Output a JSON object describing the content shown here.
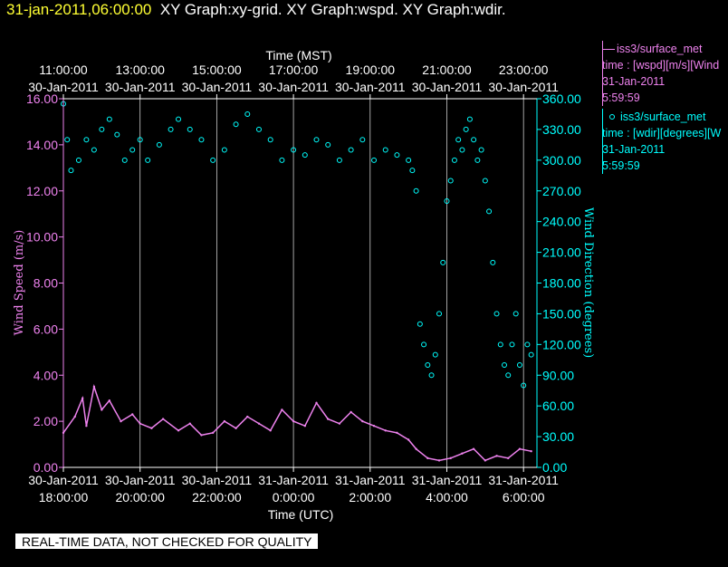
{
  "header": {
    "timestamp": "31-jan-2011,06:00:00",
    "titles": "XY Graph:xy-grid.  XY Graph:wspd.  XY Graph:wdir."
  },
  "legend": {
    "wspd": {
      "name": "iss3/surface_met",
      "line2": "time : [wspd][m/s][Wind",
      "line3": "31-Jan-2011",
      "line4": "5:59:59"
    },
    "wdir": {
      "name": "iss3/surface_met",
      "line2": "time : [wdir][degrees][W",
      "line3": "31-Jan-2011",
      "line4": "5:59:59"
    }
  },
  "disclaimer": "REAL-TIME DATA, NOT CHECKED FOR QUALITY",
  "colors": {
    "wspd": "#ee82ee",
    "wdir": "#00ffff",
    "grid": "#ffffff",
    "axis_left": "#ee82ee",
    "axis_right": "#00ffff",
    "header_timestamp": "#ffff33"
  },
  "chart_data": {
    "type": "scatter",
    "xlabel_top": "Time (MST)",
    "xlabel_bottom": "Time (UTC)",
    "ylabel_left": "Wind Speed (m/s)",
    "ylabel_right": "Wind Direction (degrees)",
    "xlim_utc_hours": [
      18.0,
      30.35
    ],
    "ylim_left": [
      0,
      16
    ],
    "ylim_right": [
      0,
      360
    ],
    "grid": true,
    "top_ticks": [
      {
        "x": 18,
        "time": "11:00:00",
        "date": "30-Jan-2011"
      },
      {
        "x": 20,
        "time": "13:00:00",
        "date": "30-Jan-2011"
      },
      {
        "x": 22,
        "time": "15:00:00",
        "date": "30-Jan-2011"
      },
      {
        "x": 24,
        "time": "17:00:00",
        "date": "30-Jan-2011"
      },
      {
        "x": 26,
        "time": "19:00:00",
        "date": "30-Jan-2011"
      },
      {
        "x": 28,
        "time": "21:00:00",
        "date": "30-Jan-2011"
      },
      {
        "x": 30,
        "time": "23:00:00",
        "date": "30-Jan-2011"
      }
    ],
    "bottom_ticks": [
      {
        "x": 18,
        "date": "30-Jan-2011",
        "time": "18:00:00"
      },
      {
        "x": 20,
        "date": "30-Jan-2011",
        "time": "20:00:00"
      },
      {
        "x": 22,
        "date": "30-Jan-2011",
        "time": "22:00:00"
      },
      {
        "x": 24,
        "date": "31-Jan-2011",
        "time": "0:00:00"
      },
      {
        "x": 26,
        "date": "31-Jan-2011",
        "time": "2:00:00"
      },
      {
        "x": 28,
        "date": "31-Jan-2011",
        "time": "4:00:00"
      },
      {
        "x": 30,
        "date": "31-Jan-2011",
        "time": "6:00:00"
      }
    ],
    "left_ticks": [
      "0.00",
      "2.00",
      "4.00",
      "6.00",
      "8.00",
      "10.00",
      "12.00",
      "14.00",
      "16.00"
    ],
    "right_ticks": [
      "0.00",
      "30.00",
      "60.00",
      "90.00",
      "120.00",
      "150.00",
      "180.00",
      "210.00",
      "240.00",
      "270.00",
      "300.00",
      "330.00",
      "360.00"
    ],
    "series": [
      {
        "name": "wspd",
        "style": "line",
        "x": [
          18.0,
          18.3,
          18.5,
          18.6,
          18.8,
          19.0,
          19.2,
          19.5,
          19.8,
          20.0,
          20.3,
          20.6,
          21.0,
          21.3,
          21.6,
          21.9,
          22.2,
          22.5,
          22.8,
          23.1,
          23.4,
          23.7,
          24.0,
          24.3,
          24.6,
          24.9,
          25.2,
          25.5,
          25.8,
          26.1,
          26.4,
          26.7,
          27.0,
          27.2,
          27.5,
          27.8,
          28.1,
          28.4,
          28.7,
          29.0,
          29.3,
          29.6,
          29.9,
          30.2
        ],
        "y": [
          1.5,
          2.2,
          3.0,
          1.8,
          3.5,
          2.5,
          2.9,
          2.0,
          2.3,
          1.9,
          1.7,
          2.1,
          1.6,
          1.9,
          1.4,
          1.5,
          2.0,
          1.7,
          2.2,
          1.9,
          1.6,
          2.5,
          2.0,
          1.8,
          2.8,
          2.1,
          1.9,
          2.4,
          2.0,
          1.8,
          1.6,
          1.5,
          1.2,
          0.8,
          0.4,
          0.3,
          0.4,
          0.6,
          0.8,
          0.3,
          0.5,
          0.4,
          0.8,
          0.7
        ]
      },
      {
        "name": "wdir",
        "style": "scatter",
        "x": [
          18.0,
          18.1,
          18.2,
          18.4,
          18.6,
          18.8,
          19.0,
          19.2,
          19.4,
          19.6,
          19.8,
          20.0,
          20.2,
          20.5,
          20.8,
          21.0,
          21.3,
          21.6,
          21.9,
          22.2,
          22.5,
          22.8,
          23.1,
          23.4,
          23.7,
          24.0,
          24.3,
          24.6,
          24.9,
          25.2,
          25.5,
          25.8,
          26.1,
          26.4,
          26.7,
          27.0,
          27.1,
          27.2,
          27.3,
          27.4,
          27.5,
          27.6,
          27.7,
          27.8,
          27.9,
          28.0,
          28.1,
          28.2,
          28.3,
          28.4,
          28.5,
          28.6,
          28.7,
          28.8,
          28.9,
          29.0,
          29.1,
          29.2,
          29.3,
          29.4,
          29.5,
          29.6,
          29.7,
          29.8,
          29.9,
          30.0,
          30.1,
          30.2
        ],
        "y": [
          355,
          320,
          290,
          300,
          320,
          310,
          330,
          340,
          325,
          300,
          310,
          320,
          300,
          315,
          330,
          340,
          330,
          320,
          300,
          310,
          335,
          345,
          330,
          320,
          300,
          310,
          305,
          320,
          315,
          300,
          310,
          320,
          300,
          310,
          305,
          300,
          290,
          270,
          140,
          120,
          100,
          90,
          110,
          150,
          200,
          260,
          280,
          300,
          320,
          310,
          330,
          340,
          320,
          300,
          310,
          280,
          250,
          200,
          150,
          120,
          100,
          90,
          120,
          150,
          100,
          80,
          120,
          110
        ]
      }
    ]
  }
}
